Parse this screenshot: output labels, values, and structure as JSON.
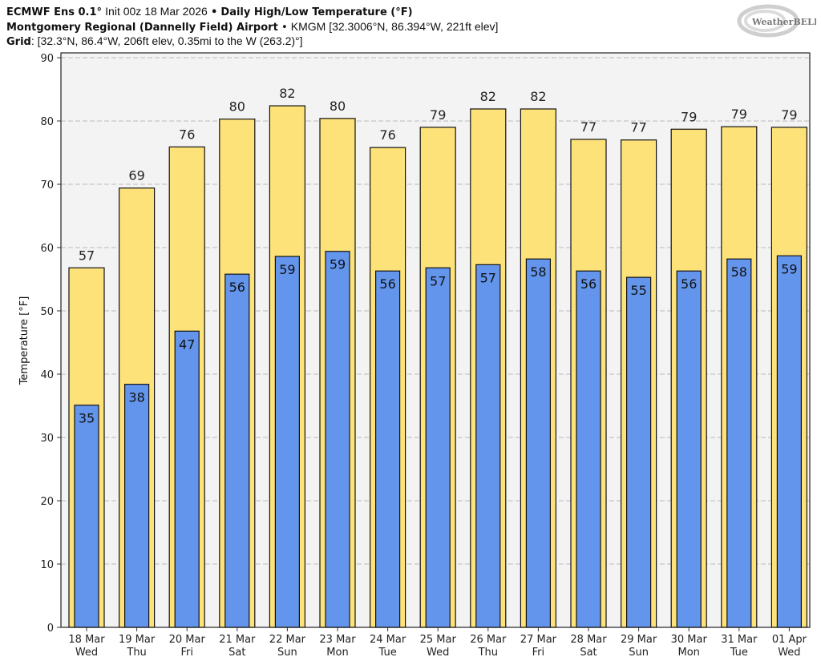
{
  "header": {
    "model": "ECMWF Ens 0.1°",
    "init": "Init 00z 18 Mar 2026",
    "title": "Daily High/Low Temperature (°F)",
    "station": "Montgomery Regional (Dannelly Field) Airport",
    "station_info": "KMGM [32.3006°N, 86.394°W, 221ft elev]",
    "grid_label": "Grid",
    "grid_info": ": [32.3°N, 86.4°W, 206ft elev, 0.35mi to the W (263.2)°]",
    "bullet": "•"
  },
  "logo": {
    "text": "WeatherBELL"
  },
  "chart_data": {
    "type": "bar",
    "title": "Daily High/Low Temperature (°F)",
    "ylabel": "Temperature [°F]",
    "xlabel": "",
    "ylim": [
      0,
      90
    ],
    "yticks": [
      0,
      10,
      20,
      30,
      40,
      50,
      60,
      70,
      80,
      90
    ],
    "grid": true,
    "categories": [
      [
        "18 Mar",
        "Wed"
      ],
      [
        "19 Mar",
        "Thu"
      ],
      [
        "20 Mar",
        "Fri"
      ],
      [
        "21 Mar",
        "Sat"
      ],
      [
        "22 Mar",
        "Sun"
      ],
      [
        "23 Mar",
        "Mon"
      ],
      [
        "24 Mar",
        "Tue"
      ],
      [
        "25 Mar",
        "Wed"
      ],
      [
        "26 Mar",
        "Thu"
      ],
      [
        "27 Mar",
        "Fri"
      ],
      [
        "28 Mar",
        "Sat"
      ],
      [
        "29 Mar",
        "Sun"
      ],
      [
        "30 Mar",
        "Mon"
      ],
      [
        "31 Mar",
        "Tue"
      ],
      [
        "01 Apr",
        "Wed"
      ]
    ],
    "series": [
      {
        "key": "high",
        "color": "#fde27a",
        "values": [
          56.8,
          69.4,
          75.9,
          80.3,
          82.4,
          80.4,
          75.8,
          79.0,
          81.9,
          81.9,
          77.1,
          77.0,
          78.7,
          79.1,
          79.0
        ],
        "labels": [
          "57",
          "69",
          "76",
          "80",
          "82",
          "80",
          "76",
          "79",
          "82",
          "82",
          "77",
          "77",
          "79",
          "79",
          "79"
        ]
      },
      {
        "key": "low",
        "color": "#6495ed",
        "values": [
          35.1,
          38.4,
          46.8,
          55.8,
          58.6,
          59.4,
          56.3,
          56.8,
          57.3,
          58.2,
          56.3,
          55.3,
          56.3,
          58.2,
          58.7
        ],
        "labels": [
          "35",
          "38",
          "47",
          "56",
          "59",
          "59",
          "56",
          "57",
          "57",
          "58",
          "56",
          "55",
          "56",
          "58",
          "59"
        ]
      }
    ]
  }
}
